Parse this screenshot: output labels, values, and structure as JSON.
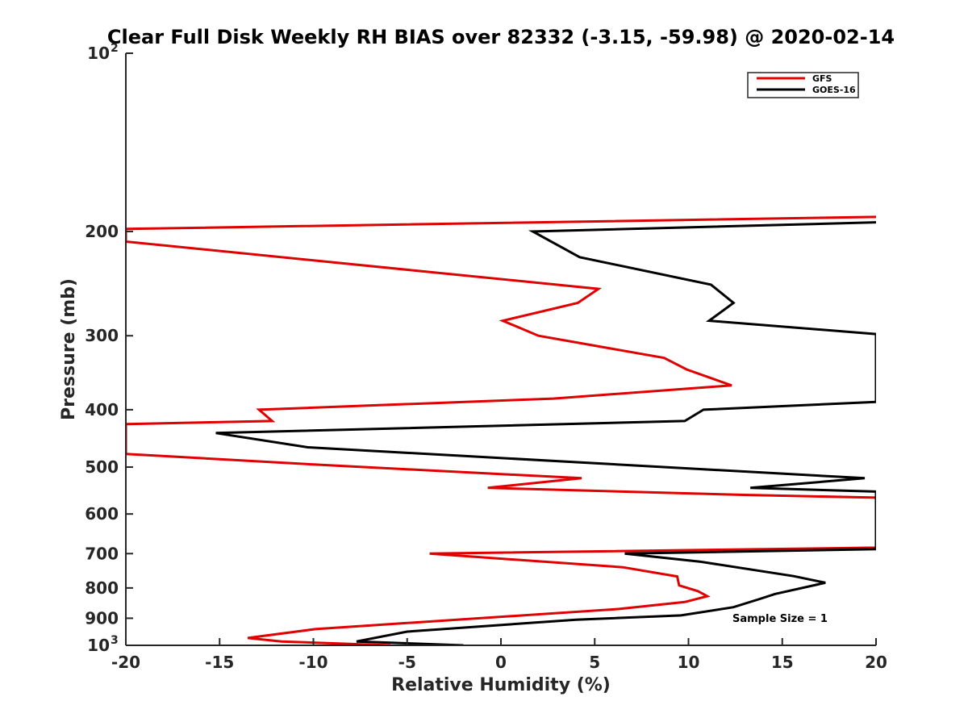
{
  "chart_data": {
    "type": "line",
    "title": "Clear Full Disk Weekly RH BIAS over 82332 (-3.15, -59.98) @ 2020-02-14",
    "xlabel": "Relative Humidity (%)",
    "ylabel": "Pressure (mb)",
    "xlim": [
      -20,
      20
    ],
    "ylim": [
      100,
      1000
    ],
    "y_scale": "log",
    "y_reversed": true,
    "x_ticks": [
      -20,
      -15,
      -10,
      -5,
      0,
      5,
      10,
      15,
      20
    ],
    "x_tick_labels": [
      "-20",
      "-15",
      "-10",
      "-5",
      "0",
      "5",
      "10",
      "15",
      "20"
    ],
    "y_ticks": [
      100,
      200,
      300,
      400,
      500,
      600,
      700,
      800,
      900,
      1000
    ],
    "y_tick_labels": [
      {
        "value": 100,
        "base": "10",
        "exp": "2"
      },
      {
        "value": 200,
        "base": "200",
        "exp": ""
      },
      {
        "value": 300,
        "base": "300",
        "exp": ""
      },
      {
        "value": 400,
        "base": "400",
        "exp": ""
      },
      {
        "value": 500,
        "base": "500",
        "exp": ""
      },
      {
        "value": 600,
        "base": "600",
        "exp": ""
      },
      {
        "value": 700,
        "base": "700",
        "exp": ""
      },
      {
        "value": 800,
        "base": "800",
        "exp": ""
      },
      {
        "value": 900,
        "base": "900",
        "exp": ""
      },
      {
        "value": 1000,
        "base": "10",
        "exp": "3"
      }
    ],
    "grid": false,
    "legend_position": "top-right",
    "annotation": "Sample Size = 1",
    "series": [
      {
        "name": "GFS",
        "color": "#e00000",
        "points": [
          [
            20,
            189
          ],
          [
            -20,
            198
          ],
          [
            -20,
            208
          ],
          [
            5.2,
            250
          ],
          [
            4.1,
            264
          ],
          [
            0.1,
            283
          ],
          [
            2,
            300
          ],
          [
            8.7,
            327
          ],
          [
            9.9,
            342
          ],
          [
            12.3,
            364
          ],
          [
            2.8,
            383
          ],
          [
            -12.9,
            400
          ],
          [
            -12.2,
            418
          ],
          [
            -20,
            423
          ],
          [
            -20,
            475
          ],
          [
            -10,
            495
          ],
          [
            4.3,
            522
          ],
          [
            -0.7,
            542
          ],
          [
            13,
            557
          ],
          [
            20,
            563
          ],
          [
            20,
            684
          ],
          [
            -3.8,
            700
          ],
          [
            6.5,
            738
          ],
          [
            9.4,
            765
          ],
          [
            9.5,
            792
          ],
          [
            10.5,
            810
          ],
          [
            11,
            826
          ],
          [
            9.8,
            845
          ],
          [
            6.3,
            868
          ],
          [
            -9.9,
            939
          ],
          [
            -13.5,
            972
          ],
          [
            -11.7,
            985
          ],
          [
            -5.9,
            1000
          ]
        ]
      },
      {
        "name": "GOES-16",
        "color": "#000000",
        "points": [
          [
            20,
            193
          ],
          [
            1.7,
            200
          ],
          [
            4.2,
            221
          ],
          [
            11.2,
            246
          ],
          [
            12.4,
            264
          ],
          [
            11.1,
            283
          ],
          [
            20,
            298
          ],
          [
            20,
            388
          ],
          [
            10.8,
            400
          ],
          [
            9.8,
            418
          ],
          [
            -15.2,
            438
          ],
          [
            -10.3,
            463
          ],
          [
            19.4,
            522
          ],
          [
            13.3,
            542
          ],
          [
            20,
            550
          ],
          [
            20,
            688
          ],
          [
            6.6,
            700
          ],
          [
            10.6,
            722
          ],
          [
            15.6,
            764
          ],
          [
            17.3,
            784
          ],
          [
            14.6,
            819
          ],
          [
            13.8,
            835
          ],
          [
            12.4,
            862
          ],
          [
            9.6,
            890
          ],
          [
            4,
            905
          ],
          [
            -5,
            948
          ],
          [
            -7.7,
            985
          ],
          [
            -2,
            1000
          ]
        ]
      }
    ]
  }
}
